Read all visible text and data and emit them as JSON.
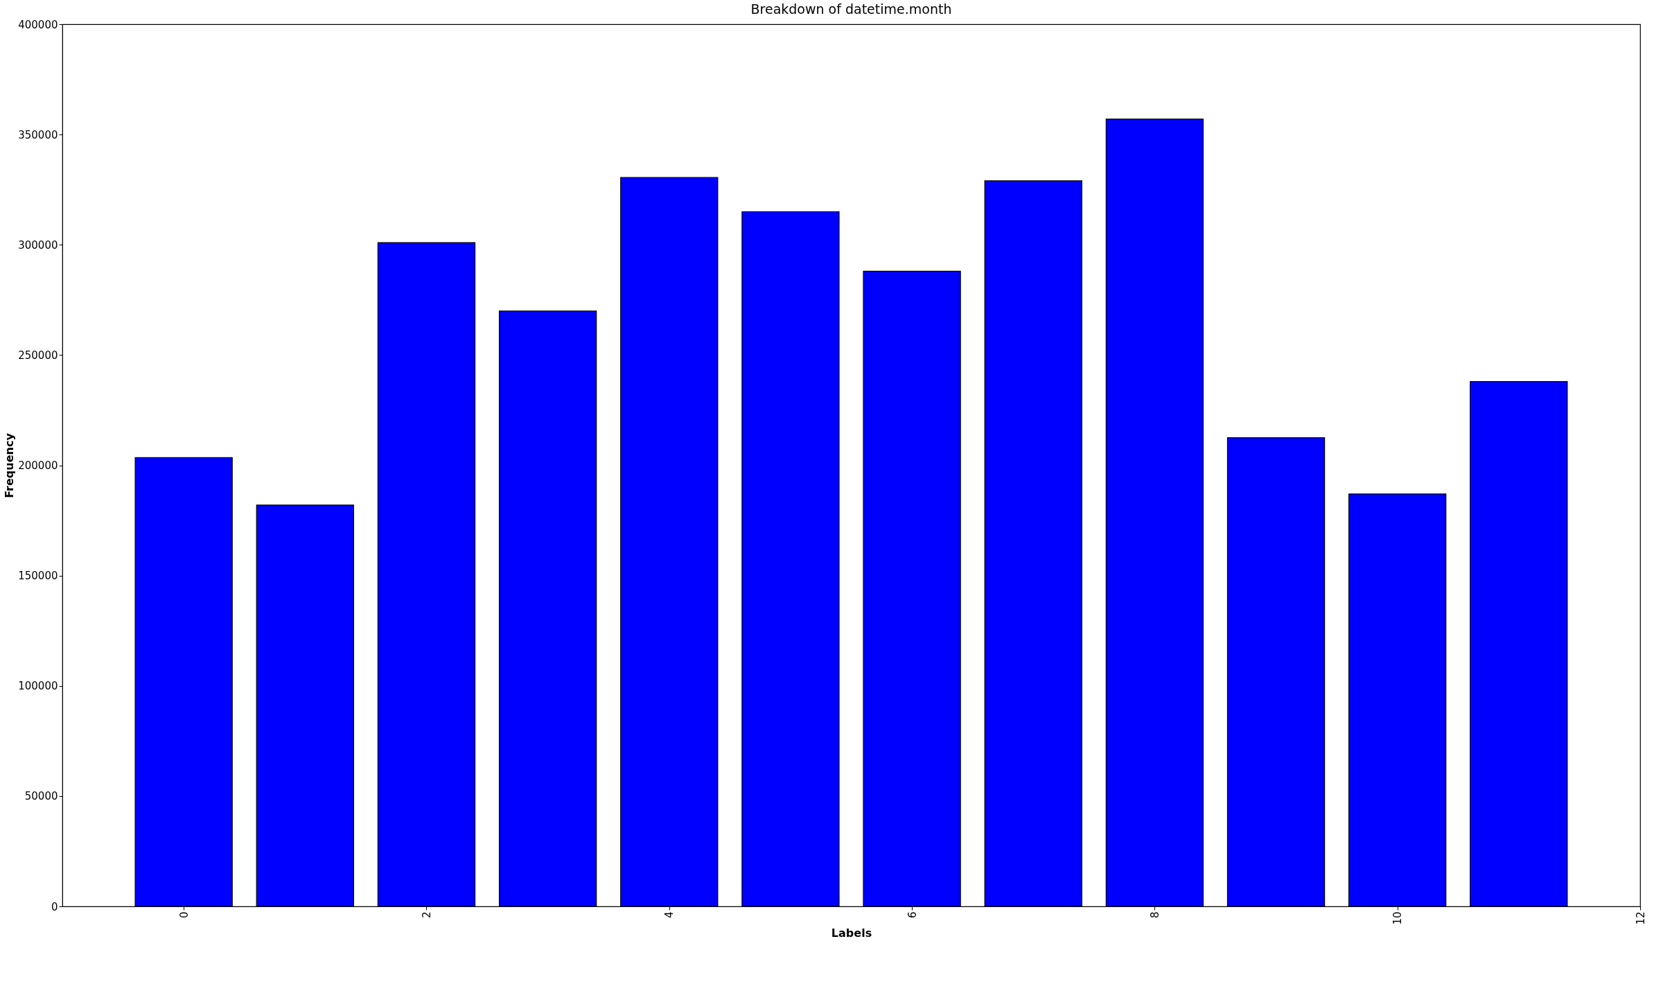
{
  "chart_data": {
    "type": "bar",
    "title": "Breakdown of datetime.month",
    "xlabel": "Labels",
    "ylabel": "Frequency",
    "x": [
      0,
      1,
      2,
      3,
      4,
      5,
      6,
      7,
      8,
      9,
      10,
      11
    ],
    "values": [
      203500,
      182000,
      301000,
      270000,
      330500,
      315000,
      288000,
      329000,
      357000,
      212500,
      187000,
      238000
    ],
    "color": "#0000ff",
    "xlim": [
      -1,
      12
    ],
    "xticks": [
      0,
      2,
      4,
      6,
      8,
      10,
      12
    ],
    "ylim": [
      0,
      400000
    ],
    "yticks": [
      0,
      50000,
      100000,
      150000,
      200000,
      250000,
      300000,
      350000,
      400000
    ],
    "grid": false
  }
}
